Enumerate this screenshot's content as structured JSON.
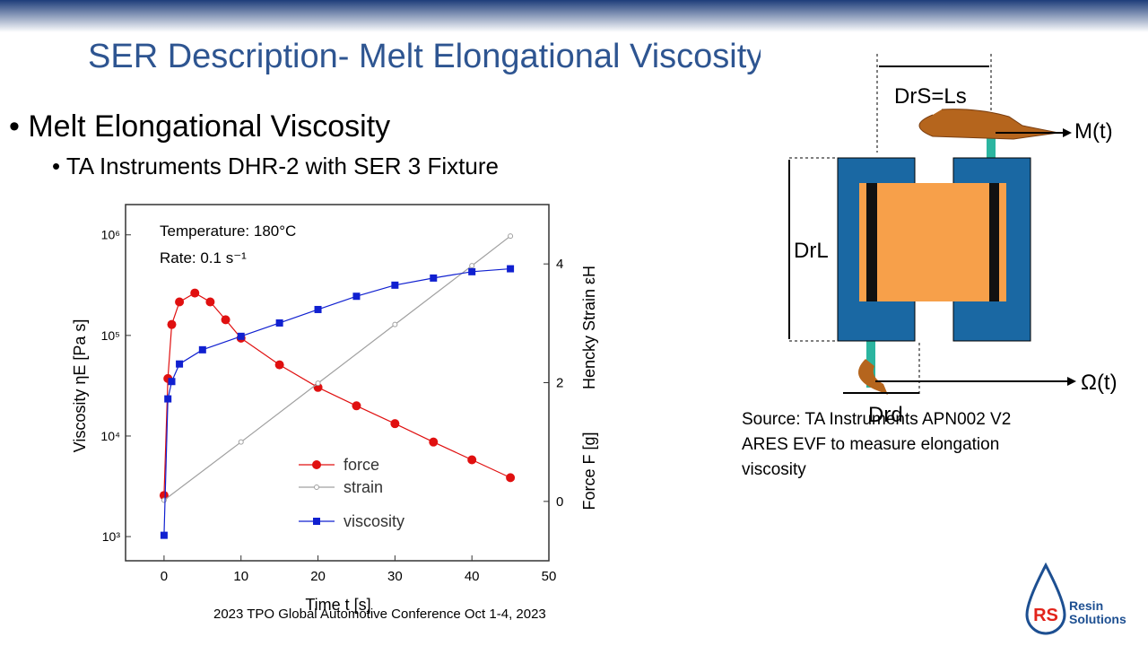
{
  "slide": {
    "title": "SER Description- Melt Elongational Viscosity",
    "bullet": "Melt Elongational Viscosity",
    "sub_bullet": "TA Instruments DHR-2 with SER 3 Fixture",
    "source": "Source: TA Instruments APN002 V2 ARES EVF to measure elongation viscosity",
    "footer": "2023 TPO Global Automotive Conference Oct 1-4, 2023",
    "logo": {
      "mark": "RS",
      "line1": "Resin",
      "line2": "Solutions"
    },
    "diagram": {
      "top_label": "DrS=Ls",
      "torque": "M(t)",
      "side_label": "DrL",
      "rate": "Ω(t)",
      "bottom_label": "Drd"
    }
  },
  "chart_data": {
    "type": "line",
    "annotations": [
      "Temperature:  180°C",
      "Rate:  0.1 s⁻¹"
    ],
    "x_label": "Time t [s]",
    "y_label": "Viscosity ηE [Pa s]",
    "y2_labels": [
      "Force F [g]",
      "Hencky Strain εH"
    ],
    "xlim": [
      -5,
      50
    ],
    "xticks": [
      0,
      10,
      20,
      30,
      40,
      50
    ],
    "ylim": [
      575,
      2000000
    ],
    "log_y": true,
    "yticks": [
      {
        "value": 1000,
        "label": "10³"
      },
      {
        "value": 10000,
        "label": "10⁴"
      },
      {
        "value": 100000,
        "label": "10⁵"
      },
      {
        "value": 1000000,
        "label": "10⁶"
      }
    ],
    "y2lim": [
      -1,
      5
    ],
    "y2ticks": [
      0,
      2,
      4
    ],
    "series": [
      {
        "name": "force",
        "color": "#e01010",
        "marker": "circle",
        "axis": "y2",
        "x": [
          0,
          0.5,
          1,
          2,
          4,
          6,
          8,
          10,
          15,
          20,
          25,
          30,
          35,
          40,
          45
        ],
        "values": [
          0.1,
          2.07,
          2.98,
          3.36,
          3.51,
          3.36,
          3.06,
          2.75,
          2.3,
          1.92,
          1.61,
          1.31,
          1.0,
          0.7,
          0.4
        ]
      },
      {
        "name": "strain",
        "color": "#a0a0a0",
        "marker": "open-circle",
        "axis": "y2",
        "x": [
          0,
          10,
          20,
          30,
          40,
          45
        ],
        "values": [
          0.02,
          1.0,
          1.99,
          2.98,
          3.97,
          4.47
        ]
      },
      {
        "name": "viscosity",
        "color": "#1020d0",
        "marker": "square",
        "x": [
          0,
          0.5,
          1,
          2,
          5,
          10,
          15,
          20,
          25,
          30,
          35,
          40,
          45
        ],
        "values": [
          1030,
          23400,
          34800,
          52000,
          72000,
          98000,
          133000,
          181000,
          245000,
          316000,
          372000,
          430000,
          460000
        ]
      }
    ]
  }
}
